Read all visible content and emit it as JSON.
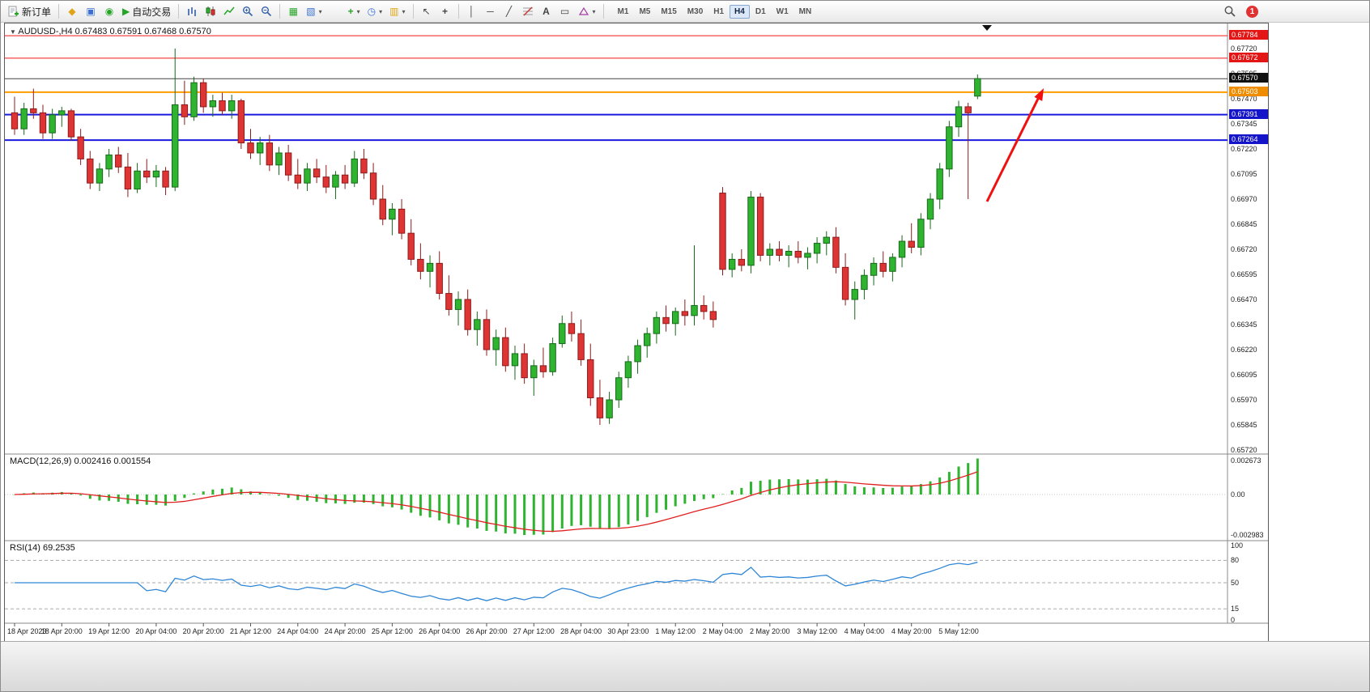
{
  "toolbar": {
    "new_order_label": "新订单",
    "autotrade_label": "自动交易",
    "notification_count": "1",
    "timeframes": [
      {
        "label": "M1",
        "active": false
      },
      {
        "label": "M5",
        "active": false
      },
      {
        "label": "M15",
        "active": false
      },
      {
        "label": "M30",
        "active": false
      },
      {
        "label": "H1",
        "active": false
      },
      {
        "label": "H4",
        "active": true
      },
      {
        "label": "D1",
        "active": false
      },
      {
        "label": "W1",
        "active": false
      },
      {
        "label": "MN",
        "active": false
      }
    ]
  },
  "icons": {
    "symbol_dropdown": "▼",
    "dropdown": "▾",
    "market_watch": "◆",
    "data_window": "▣",
    "navigator": "◉",
    "autotrade_play": "▶",
    "tile_windows": "▦",
    "cascade_windows": "▧",
    "arrange_windows": "▤",
    "indicators_plus": "+",
    "clock": "◷",
    "template": "▥",
    "cursor": "↖",
    "crosshair": "+",
    "vertical_line": "│",
    "horizontal_line": "─",
    "trendline": "╱",
    "text_tool": "A",
    "label_tool": "▭"
  },
  "chart": {
    "title": "AUDUSD-,H4 0.67483 0.67591 0.67468 0.67570"
  },
  "macd": {
    "label": "MACD(12,26,9) 0.002416 0.001554",
    "axis": [
      "0.002673",
      "0.00",
      "-0.002983"
    ]
  },
  "rsi": {
    "label": "RSI(14) 69.2535",
    "axis": [
      "100",
      "80",
      "50",
      "15",
      "0"
    ],
    "levels": [
      80,
      50,
      15
    ]
  },
  "colors": {
    "up_candle": "#2fb430",
    "up_stroke": "#17691a",
    "down_candle": "#de3434",
    "down_stroke": "#8e1c1c",
    "macd_hist": "#2fb430",
    "macd_signal": "#e02020",
    "rsi_line": "#2f86d6",
    "resistance_line": "#f01818",
    "support_line": "#1a1adf",
    "level_line": "#ff9c00",
    "current_price_line": "#444444",
    "arrow": "#f01010"
  },
  "chart_data": {
    "type": "candlestick",
    "symbol": "AUDUSD-",
    "timeframe": "H4",
    "title": "AUDUSD-,H4 0.67483 0.67591 0.67468 0.67570",
    "current_ohlc": {
      "open": 0.67483,
      "high": 0.67591,
      "low": 0.67468,
      "close": 0.6757
    },
    "ylim": [
      0.6572,
      0.67845
    ],
    "price_ticks": [
      "0.67720",
      "0.67595",
      "0.67470",
      "0.67345",
      "0.67220",
      "0.67095",
      "0.66970",
      "0.66845",
      "0.66720",
      "0.66595",
      "0.66470",
      "0.66345",
      "0.66220",
      "0.66095",
      "0.65970",
      "0.65845",
      "0.65720"
    ],
    "x_labels": [
      "18 Apr 2023",
      "18 Apr 20:00",
      "19 Apr 12:00",
      "20 Apr 04:00",
      "20 Apr 20:00",
      "21 Apr 12:00",
      "24 Apr 04:00",
      "24 Apr 20:00",
      "25 Apr 12:00",
      "26 Apr 04:00",
      "26 Apr 20:00",
      "27 Apr 12:00",
      "28 Apr 04:00",
      "30 Apr 23:00",
      "1 May 12:00",
      "2 May 04:00",
      "2 May 20:00",
      "3 May 12:00",
      "4 May 04:00",
      "4 May 20:00",
      "5 May 12:00"
    ],
    "horizontal_lines": [
      {
        "price": 0.67784,
        "label": "0.67784",
        "color": "#f01818",
        "label_bg": "#e31515",
        "width": 1
      },
      {
        "price": 0.67672,
        "label": "0.67672",
        "color": "#f01818",
        "label_bg": "#e31515",
        "width": 1
      },
      {
        "price": 0.6757,
        "label": "0.67570",
        "color": "#444444",
        "label_bg": "#101010",
        "width": 1
      },
      {
        "price": 0.67503,
        "label": "0.67503",
        "color": "#ff9c00",
        "label_bg": "#f08c00",
        "width": 2
      },
      {
        "price": 0.67391,
        "label": "0.67391",
        "color": "#1a1adf",
        "label_bg": "#1414c8",
        "width": 2
      },
      {
        "price": 0.67264,
        "label": "0.67264",
        "color": "#1a1adf",
        "label_bg": "#1414c8",
        "width": 2
      }
    ],
    "candles": [
      [
        0.674,
        0.6748,
        0.6729,
        0.6732
      ],
      [
        0.6732,
        0.6745,
        0.6729,
        0.6742
      ],
      [
        0.6742,
        0.6752,
        0.6737,
        0.674
      ],
      [
        0.674,
        0.6744,
        0.6727,
        0.673
      ],
      [
        0.673,
        0.6742,
        0.6727,
        0.6739
      ],
      [
        0.6739,
        0.6743,
        0.6733,
        0.6741
      ],
      [
        0.6741,
        0.6742,
        0.6726,
        0.6728
      ],
      [
        0.6728,
        0.6732,
        0.6714,
        0.6717
      ],
      [
        0.6717,
        0.6721,
        0.6702,
        0.6705
      ],
      [
        0.6705,
        0.6715,
        0.6701,
        0.6712
      ],
      [
        0.6712,
        0.6722,
        0.6708,
        0.6719
      ],
      [
        0.6719,
        0.6723,
        0.671,
        0.6713
      ],
      [
        0.6713,
        0.672,
        0.6698,
        0.6702
      ],
      [
        0.6702,
        0.6715,
        0.67,
        0.6711
      ],
      [
        0.6711,
        0.6717,
        0.6705,
        0.6708
      ],
      [
        0.6708,
        0.6714,
        0.6703,
        0.6711
      ],
      [
        0.6711,
        0.6713,
        0.6699,
        0.6703
      ],
      [
        0.6703,
        0.6772,
        0.6701,
        0.6744
      ],
      [
        0.6744,
        0.6756,
        0.6734,
        0.6738
      ],
      [
        0.6738,
        0.6758,
        0.6736,
        0.6755
      ],
      [
        0.6755,
        0.6757,
        0.674,
        0.6743
      ],
      [
        0.6743,
        0.6749,
        0.6738,
        0.6746
      ],
      [
        0.6746,
        0.675,
        0.6739,
        0.6741
      ],
      [
        0.6741,
        0.6749,
        0.6737,
        0.6746
      ],
      [
        0.6746,
        0.6747,
        0.6722,
        0.6725
      ],
      [
        0.6725,
        0.6732,
        0.6717,
        0.672
      ],
      [
        0.672,
        0.6728,
        0.6714,
        0.6725
      ],
      [
        0.6725,
        0.6729,
        0.6711,
        0.6714
      ],
      [
        0.6714,
        0.6723,
        0.6709,
        0.672
      ],
      [
        0.672,
        0.6724,
        0.6706,
        0.6709
      ],
      [
        0.6709,
        0.6717,
        0.6702,
        0.6705
      ],
      [
        0.6705,
        0.6715,
        0.6701,
        0.6712
      ],
      [
        0.6712,
        0.6717,
        0.6705,
        0.6708
      ],
      [
        0.6708,
        0.6714,
        0.67,
        0.6703
      ],
      [
        0.6703,
        0.6711,
        0.6697,
        0.6709
      ],
      [
        0.6709,
        0.6714,
        0.6702,
        0.6705
      ],
      [
        0.6705,
        0.6721,
        0.6703,
        0.6717
      ],
      [
        0.6717,
        0.6722,
        0.6707,
        0.671
      ],
      [
        0.671,
        0.6715,
        0.6694,
        0.6697
      ],
      [
        0.6697,
        0.6704,
        0.6684,
        0.6687
      ],
      [
        0.6687,
        0.6695,
        0.6679,
        0.6692
      ],
      [
        0.6692,
        0.6697,
        0.6677,
        0.668
      ],
      [
        0.668,
        0.6687,
        0.6664,
        0.6667
      ],
      [
        0.6667,
        0.6675,
        0.6657,
        0.6661
      ],
      [
        0.6661,
        0.6669,
        0.6653,
        0.6665
      ],
      [
        0.6665,
        0.6671,
        0.6647,
        0.665
      ],
      [
        0.665,
        0.6659,
        0.6639,
        0.6642
      ],
      [
        0.6642,
        0.6651,
        0.6634,
        0.6647
      ],
      [
        0.6647,
        0.6652,
        0.6629,
        0.6632
      ],
      [
        0.6632,
        0.6641,
        0.6624,
        0.6637
      ],
      [
        0.6637,
        0.6642,
        0.6619,
        0.6622
      ],
      [
        0.6622,
        0.6632,
        0.6614,
        0.6628
      ],
      [
        0.6628,
        0.6633,
        0.6611,
        0.6614
      ],
      [
        0.6614,
        0.6624,
        0.6607,
        0.662
      ],
      [
        0.662,
        0.6625,
        0.6605,
        0.6608
      ],
      [
        0.6608,
        0.6617,
        0.6599,
        0.6614
      ],
      [
        0.6614,
        0.6623,
        0.6608,
        0.6611
      ],
      [
        0.6611,
        0.6628,
        0.6609,
        0.6625
      ],
      [
        0.6625,
        0.6639,
        0.6623,
        0.6635
      ],
      [
        0.6635,
        0.6641,
        0.6626,
        0.663
      ],
      [
        0.663,
        0.6637,
        0.6614,
        0.6617
      ],
      [
        0.6617,
        0.6625,
        0.6594,
        0.6598
      ],
      [
        0.6598,
        0.6607,
        0.65845,
        0.6588
      ],
      [
        0.6588,
        0.6601,
        0.6585,
        0.6597
      ],
      [
        0.6597,
        0.6611,
        0.6593,
        0.6608
      ],
      [
        0.6608,
        0.6619,
        0.6603,
        0.6616
      ],
      [
        0.6616,
        0.6627,
        0.661,
        0.6624
      ],
      [
        0.6624,
        0.6633,
        0.6618,
        0.663
      ],
      [
        0.663,
        0.6641,
        0.6625,
        0.6638
      ],
      [
        0.6638,
        0.6644,
        0.6631,
        0.6635
      ],
      [
        0.6635,
        0.6643,
        0.6629,
        0.6641
      ],
      [
        0.6641,
        0.6647,
        0.6634,
        0.6639
      ],
      [
        0.6639,
        0.6674,
        0.6634,
        0.6644
      ],
      [
        0.6644,
        0.6649,
        0.6637,
        0.6641
      ],
      [
        0.6641,
        0.6646,
        0.6633,
        0.6637
      ],
      [
        0.67,
        0.6703,
        0.6659,
        0.6662
      ],
      [
        0.6662,
        0.667,
        0.6658,
        0.6667
      ],
      [
        0.6667,
        0.6672,
        0.6661,
        0.6664
      ],
      [
        0.6664,
        0.6701,
        0.666,
        0.6698
      ],
      [
        0.6698,
        0.67,
        0.6666,
        0.6669
      ],
      [
        0.6669,
        0.6675,
        0.6664,
        0.6672
      ],
      [
        0.6672,
        0.6676,
        0.6666,
        0.6669
      ],
      [
        0.6669,
        0.6674,
        0.6663,
        0.6671
      ],
      [
        0.6671,
        0.6676,
        0.6665,
        0.6668
      ],
      [
        0.6668,
        0.6673,
        0.6662,
        0.667
      ],
      [
        0.667,
        0.6678,
        0.6665,
        0.6675
      ],
      [
        0.6675,
        0.6681,
        0.6669,
        0.6678
      ],
      [
        0.6678,
        0.6683,
        0.666,
        0.6663
      ],
      [
        0.6663,
        0.667,
        0.6644,
        0.6647
      ],
      [
        0.6647,
        0.6656,
        0.6637,
        0.6652
      ],
      [
        0.6652,
        0.6662,
        0.6647,
        0.6659
      ],
      [
        0.6659,
        0.6668,
        0.6654,
        0.6665
      ],
      [
        0.6665,
        0.6671,
        0.6658,
        0.6661
      ],
      [
        0.6661,
        0.667,
        0.6656,
        0.6668
      ],
      [
        0.6668,
        0.6679,
        0.6663,
        0.6676
      ],
      [
        0.6676,
        0.6685,
        0.667,
        0.6673
      ],
      [
        0.6673,
        0.669,
        0.6669,
        0.6687
      ],
      [
        0.6687,
        0.67,
        0.6682,
        0.6697
      ],
      [
        0.6697,
        0.6715,
        0.6692,
        0.6712
      ],
      [
        0.6712,
        0.6736,
        0.6708,
        0.6733
      ],
      [
        0.6733,
        0.6746,
        0.6728,
        0.6743
      ],
      [
        0.6743,
        0.6745,
        0.6697,
        0.674
      ],
      [
        0.67483,
        0.67591,
        0.67468,
        0.6757
      ]
    ],
    "indicators": [
      {
        "name": "MACD",
        "params": [
          12,
          26,
          9
        ],
        "current_values": [
          0.002416,
          0.001554
        ]
      },
      {
        "name": "RSI",
        "params": [
          14
        ],
        "current_value": 69.2535
      }
    ],
    "annotations": [
      {
        "type": "arrow-up",
        "color": "#f01010"
      }
    ]
  }
}
